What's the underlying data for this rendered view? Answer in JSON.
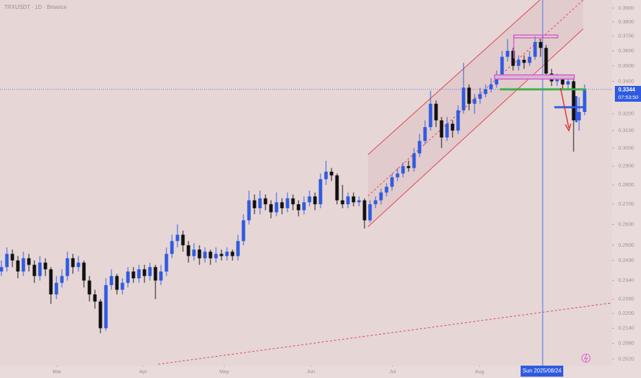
{
  "chart_data": {
    "type": "candlestick",
    "title": "TRXUSDT · 1D · Binance",
    "log_scale": true,
    "up_color": "#2f5be0",
    "down_color": "#111111",
    "ylim": [
      0.1995,
      0.396
    ],
    "xlim": [
      -0.25,
      111
    ],
    "yticks": [
      {
        "value": 0.39,
        "label": "0.3900"
      },
      {
        "value": 0.38,
        "label": "0.3800"
      },
      {
        "value": 0.37,
        "label": "0.3700"
      },
      {
        "value": 0.36,
        "label": "0.3600"
      },
      {
        "value": 0.35,
        "label": "0.3500"
      },
      {
        "value": 0.34,
        "label": "0.3400"
      },
      {
        "value": 0.32,
        "label": "0.3200"
      },
      {
        "value": 0.31,
        "label": "0.3100"
      },
      {
        "value": 0.3,
        "label": "0.3000"
      },
      {
        "value": 0.29,
        "label": "0.2900"
      },
      {
        "value": 0.28,
        "label": "0.2800"
      },
      {
        "value": 0.27,
        "label": "0.2700"
      },
      {
        "value": 0.26,
        "label": "0.2600"
      },
      {
        "value": 0.25,
        "label": "0.2500"
      },
      {
        "value": 0.243,
        "label": "0.2430"
      },
      {
        "value": 0.234,
        "label": "0.2340"
      },
      {
        "value": 0.226,
        "label": "0.2260"
      },
      {
        "value": 0.22,
        "label": "0.2200"
      },
      {
        "value": 0.214,
        "label": "0.2140"
      },
      {
        "value": 0.208,
        "label": "0.2080"
      },
      {
        "value": 0.202,
        "label": "0.2020"
      }
    ],
    "xticks": [
      {
        "value": 10.1,
        "label": "Mar"
      },
      {
        "value": 25.75,
        "label": "Apr"
      },
      {
        "value": 40.5,
        "label": "May"
      },
      {
        "value": 56.25,
        "label": "Jun"
      },
      {
        "value": 71.1,
        "label": "Jul"
      },
      {
        "value": 86.9,
        "label": "Aug"
      }
    ],
    "open": [
      0.238,
      0.24,
      0.246,
      0.243,
      0.238,
      0.244,
      0.241,
      0.236,
      0.242,
      0.239,
      0.228,
      0.233,
      0.236,
      0.244,
      0.24,
      0.242,
      0.234,
      0.228,
      0.225,
      0.214,
      0.232,
      0.236,
      0.23,
      0.233,
      0.238,
      0.235,
      0.239,
      0.236,
      0.24,
      0.234,
      0.238,
      0.246,
      0.252,
      0.255,
      0.25,
      0.245,
      0.248,
      0.244,
      0.247,
      0.244,
      0.246,
      0.245,
      0.247,
      0.245,
      0.252,
      0.262,
      0.272,
      0.268,
      0.273,
      0.27,
      0.266,
      0.271,
      0.268,
      0.273,
      0.27,
      0.267,
      0.271,
      0.274,
      0.27,
      0.283,
      0.287,
      0.285,
      0.272,
      0.27,
      0.274,
      0.271,
      0.272,
      0.262,
      0.27,
      0.272,
      0.276,
      0.279,
      0.284,
      0.286,
      0.29,
      0.289,
      0.297,
      0.304,
      0.312,
      0.326,
      0.316,
      0.306,
      0.314,
      0.31,
      0.322,
      0.336,
      0.326,
      0.329,
      0.332,
      0.335,
      0.338,
      0.343,
      0.356,
      0.36,
      0.35,
      0.354,
      0.352,
      0.356,
      0.366,
      0.362,
      0.345,
      0.34,
      0.342,
      0.338,
      0.34,
      0.316,
      0.321
    ],
    "high": [
      0.243,
      0.249,
      0.248,
      0.245,
      0.247,
      0.246,
      0.243,
      0.245,
      0.244,
      0.24,
      0.236,
      0.239,
      0.247,
      0.246,
      0.245,
      0.243,
      0.236,
      0.23,
      0.226,
      0.235,
      0.239,
      0.237,
      0.235,
      0.24,
      0.24,
      0.241,
      0.241,
      0.242,
      0.241,
      0.241,
      0.249,
      0.255,
      0.26,
      0.257,
      0.252,
      0.251,
      0.25,
      0.249,
      0.248,
      0.249,
      0.248,
      0.249,
      0.248,
      0.255,
      0.265,
      0.277,
      0.275,
      0.277,
      0.275,
      0.272,
      0.276,
      0.273,
      0.276,
      0.275,
      0.272,
      0.274,
      0.277,
      0.276,
      0.286,
      0.293,
      0.289,
      0.286,
      0.28,
      0.276,
      0.276,
      0.274,
      0.273,
      0.272,
      0.274,
      0.278,
      0.281,
      0.286,
      0.289,
      0.292,
      0.293,
      0.3,
      0.308,
      0.316,
      0.334,
      0.328,
      0.318,
      0.318,
      0.316,
      0.325,
      0.352,
      0.338,
      0.332,
      0.336,
      0.338,
      0.342,
      0.347,
      0.36,
      0.368,
      0.362,
      0.357,
      0.357,
      0.36,
      0.37,
      0.368,
      0.364,
      0.348,
      0.345,
      0.344,
      0.343,
      0.342,
      0.33,
      0.338
    ],
    "low": [
      0.236,
      0.238,
      0.24,
      0.235,
      0.236,
      0.238,
      0.233,
      0.234,
      0.236,
      0.224,
      0.226,
      0.231,
      0.234,
      0.237,
      0.238,
      0.231,
      0.225,
      0.222,
      0.212,
      0.213,
      0.23,
      0.228,
      0.228,
      0.231,
      0.233,
      0.233,
      0.233,
      0.234,
      0.226,
      0.232,
      0.236,
      0.244,
      0.249,
      0.247,
      0.242,
      0.243,
      0.241,
      0.242,
      0.241,
      0.242,
      0.243,
      0.243,
      0.243,
      0.243,
      0.25,
      0.26,
      0.265,
      0.265,
      0.267,
      0.263,
      0.264,
      0.265,
      0.266,
      0.267,
      0.264,
      0.265,
      0.269,
      0.267,
      0.268,
      0.28,
      0.282,
      0.27,
      0.268,
      0.268,
      0.269,
      0.269,
      0.258,
      0.261,
      0.268,
      0.27,
      0.274,
      0.277,
      0.282,
      0.284,
      0.287,
      0.287,
      0.295,
      0.302,
      0.31,
      0.312,
      0.3,
      0.304,
      0.306,
      0.308,
      0.32,
      0.322,
      0.32,
      0.326,
      0.33,
      0.333,
      0.336,
      0.341,
      0.353,
      0.347,
      0.347,
      0.348,
      0.35,
      0.354,
      0.356,
      0.342,
      0.337,
      0.337,
      0.335,
      0.335,
      0.298,
      0.31,
      0.319
    ],
    "close": [
      0.24,
      0.246,
      0.243,
      0.238,
      0.244,
      0.241,
      0.236,
      0.242,
      0.239,
      0.228,
      0.233,
      0.236,
      0.244,
      0.24,
      0.242,
      0.234,
      0.228,
      0.225,
      0.214,
      0.232,
      0.236,
      0.23,
      0.233,
      0.238,
      0.235,
      0.239,
      0.236,
      0.24,
      0.234,
      0.238,
      0.246,
      0.252,
      0.255,
      0.25,
      0.245,
      0.248,
      0.244,
      0.247,
      0.244,
      0.246,
      0.245,
      0.247,
      0.245,
      0.252,
      0.262,
      0.272,
      0.268,
      0.273,
      0.27,
      0.266,
      0.271,
      0.268,
      0.273,
      0.27,
      0.267,
      0.271,
      0.274,
      0.27,
      0.283,
      0.287,
      0.285,
      0.272,
      0.27,
      0.274,
      0.271,
      0.272,
      0.262,
      0.27,
      0.272,
      0.276,
      0.279,
      0.284,
      0.286,
      0.29,
      0.289,
      0.297,
      0.304,
      0.312,
      0.326,
      0.316,
      0.306,
      0.314,
      0.31,
      0.322,
      0.336,
      0.326,
      0.329,
      0.332,
      0.335,
      0.338,
      0.343,
      0.356,
      0.36,
      0.35,
      0.354,
      0.352,
      0.356,
      0.366,
      0.362,
      0.345,
      0.34,
      0.342,
      0.338,
      0.34,
      0.316,
      0.321,
      0.3344
    ],
    "countdown": "07:53:50",
    "crosshair_date": "Sun 2025/08/24"
  }
}
